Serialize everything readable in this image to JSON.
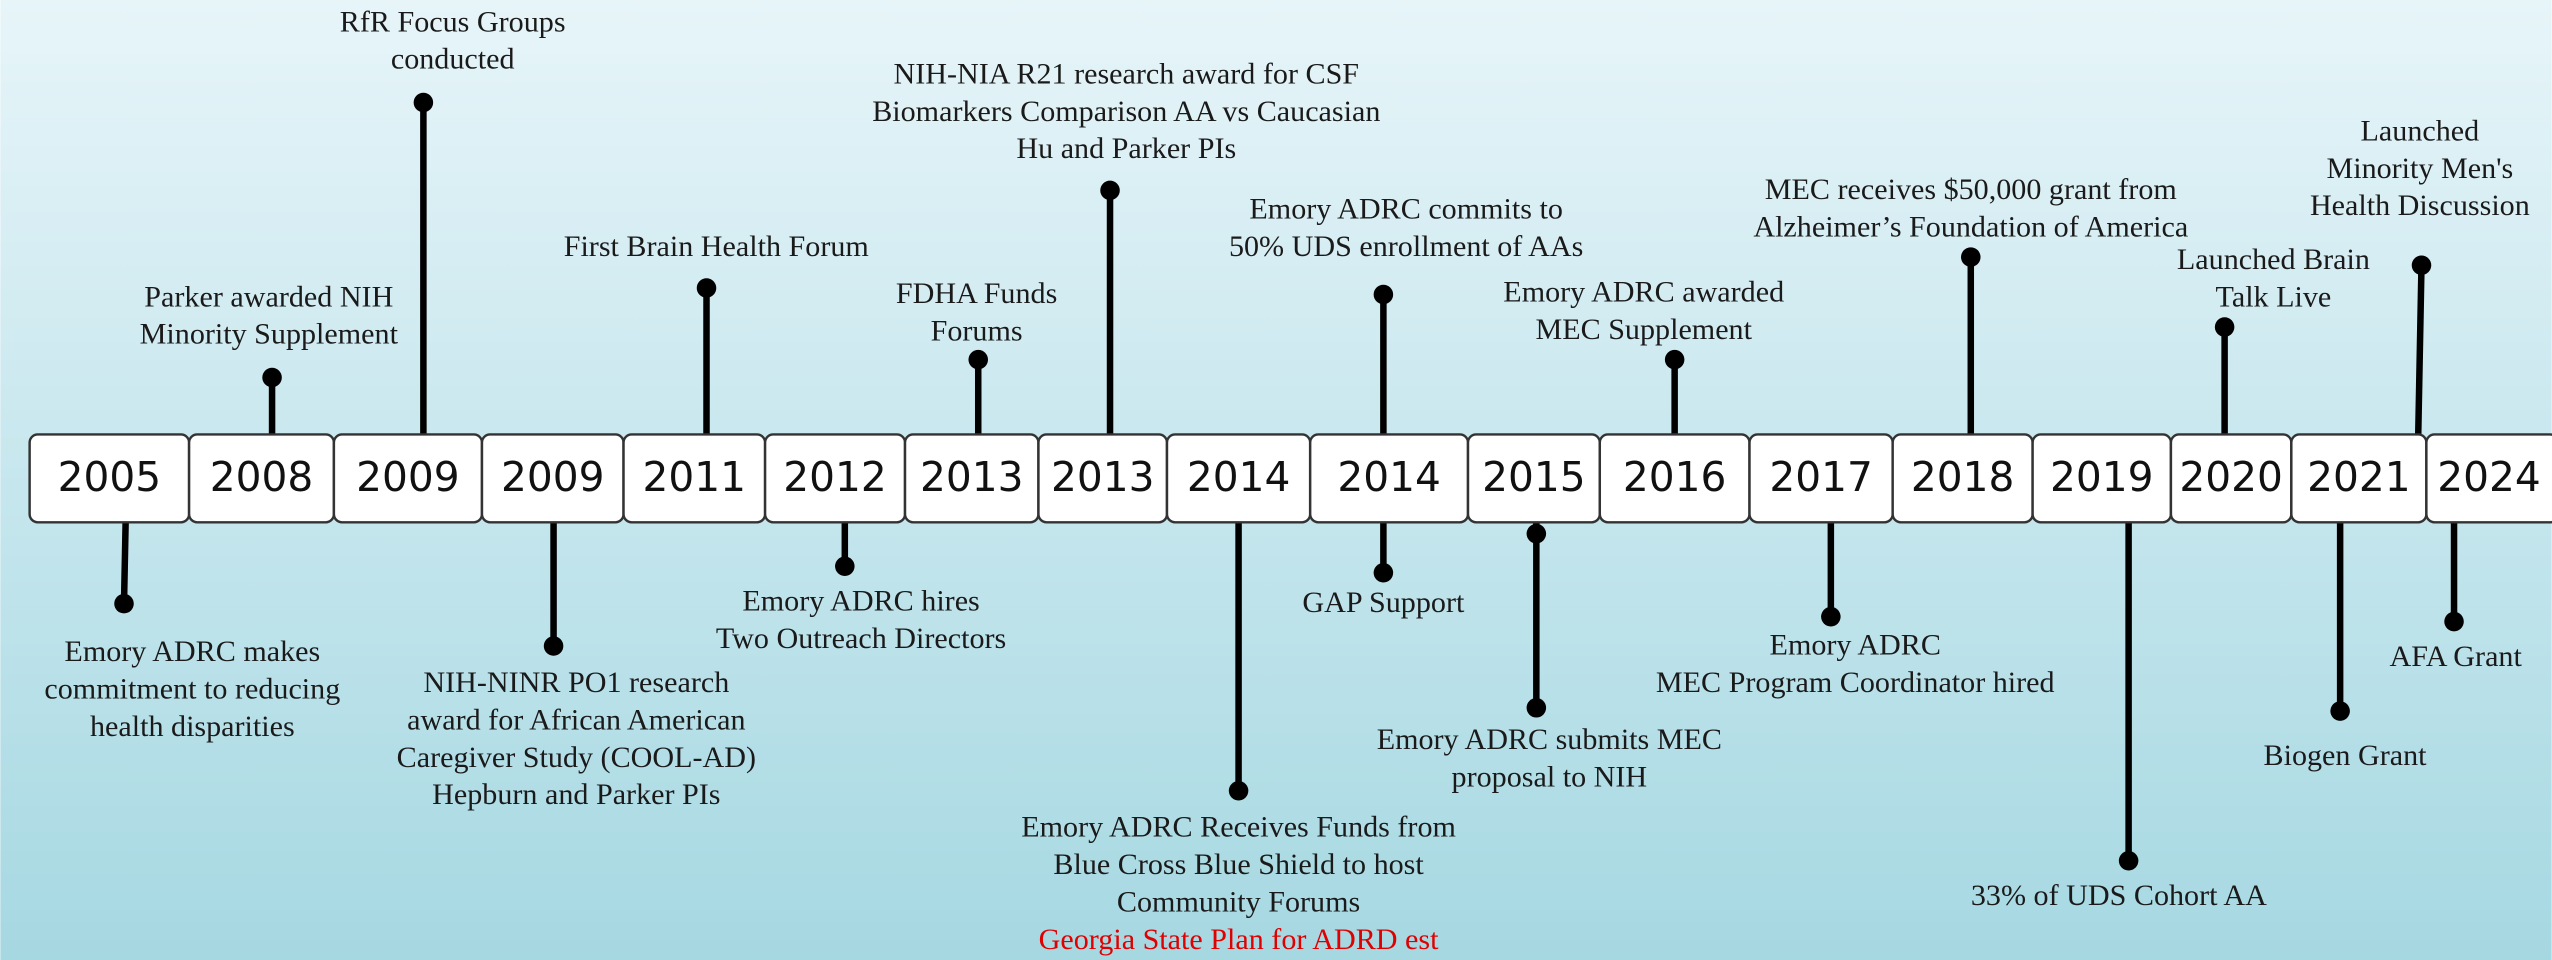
{
  "years": [
    "2005",
    "2008",
    "2009",
    "2009",
    "2011",
    "2012",
    "2013",
    "2013",
    "2014",
    "2014",
    "2015",
    "2016",
    "2017",
    "2018",
    "2019",
    "2020",
    "2021",
    "2024"
  ],
  "events": [
    {
      "text": [
        "Parker awarded NIH",
        "Minority Supplement"
      ]
    },
    {
      "text": [
        "RfR Focus Groups",
        "conducted"
      ]
    },
    {
      "text": [
        "First Brain Health Forum"
      ]
    },
    {
      "text": [
        "FDHA Funds",
        "Forums"
      ]
    },
    {
      "text": [
        "NIH-NIA R21 research award for CSF",
        "Biomarkers Comparison AA vs Caucasian",
        "Hu and Parker PIs"
      ]
    },
    {
      "text": [
        "Emory ADRC commits to",
        "50% UDS enrollment of AAs"
      ]
    },
    {
      "text": [
        "Emory ADRC awarded",
        "MEC Supplement"
      ]
    },
    {
      "text": [
        "MEC receives $50,000 grant from",
        "Alzheimer’s Foundation of America"
      ]
    },
    {
      "text": [
        "Launched Brain",
        "Talk Live"
      ]
    },
    {
      "text": [
        "Launched",
        "Minority Men's",
        "Health Discussion"
      ]
    },
    {
      "text": [
        "Emory ADRC makes",
        "commitment to reducing",
        "health disparities"
      ]
    },
    {
      "text": [
        "NIH-NINR PO1 research",
        "award for African American",
        "Caregiver Study (COOL-AD)",
        "Hepburn and Parker PIs"
      ]
    },
    {
      "text": [
        "Emory ADRC hires",
        "Two Outreach Directors"
      ]
    },
    {
      "text": [
        "Emory ADRC Receives Funds from",
        "Blue Cross Blue Shield to host",
        "Community Forums"
      ],
      "note": "Georgia State Plan for ADRD  est"
    },
    {
      "text": [
        "GAP Support"
      ]
    },
    {
      "text": [
        "Emory ADRC submits MEC",
        "proposal to NIH"
      ]
    },
    {
      "text": [
        "Emory ADRC",
        "MEC Program Coordinator hired"
      ]
    },
    {
      "text": [
        "33% of UDS Cohort AA"
      ]
    },
    {
      "text": [
        "Biogen Grant"
      ]
    },
    {
      "text": [
        "AFA Grant"
      ]
    }
  ]
}
